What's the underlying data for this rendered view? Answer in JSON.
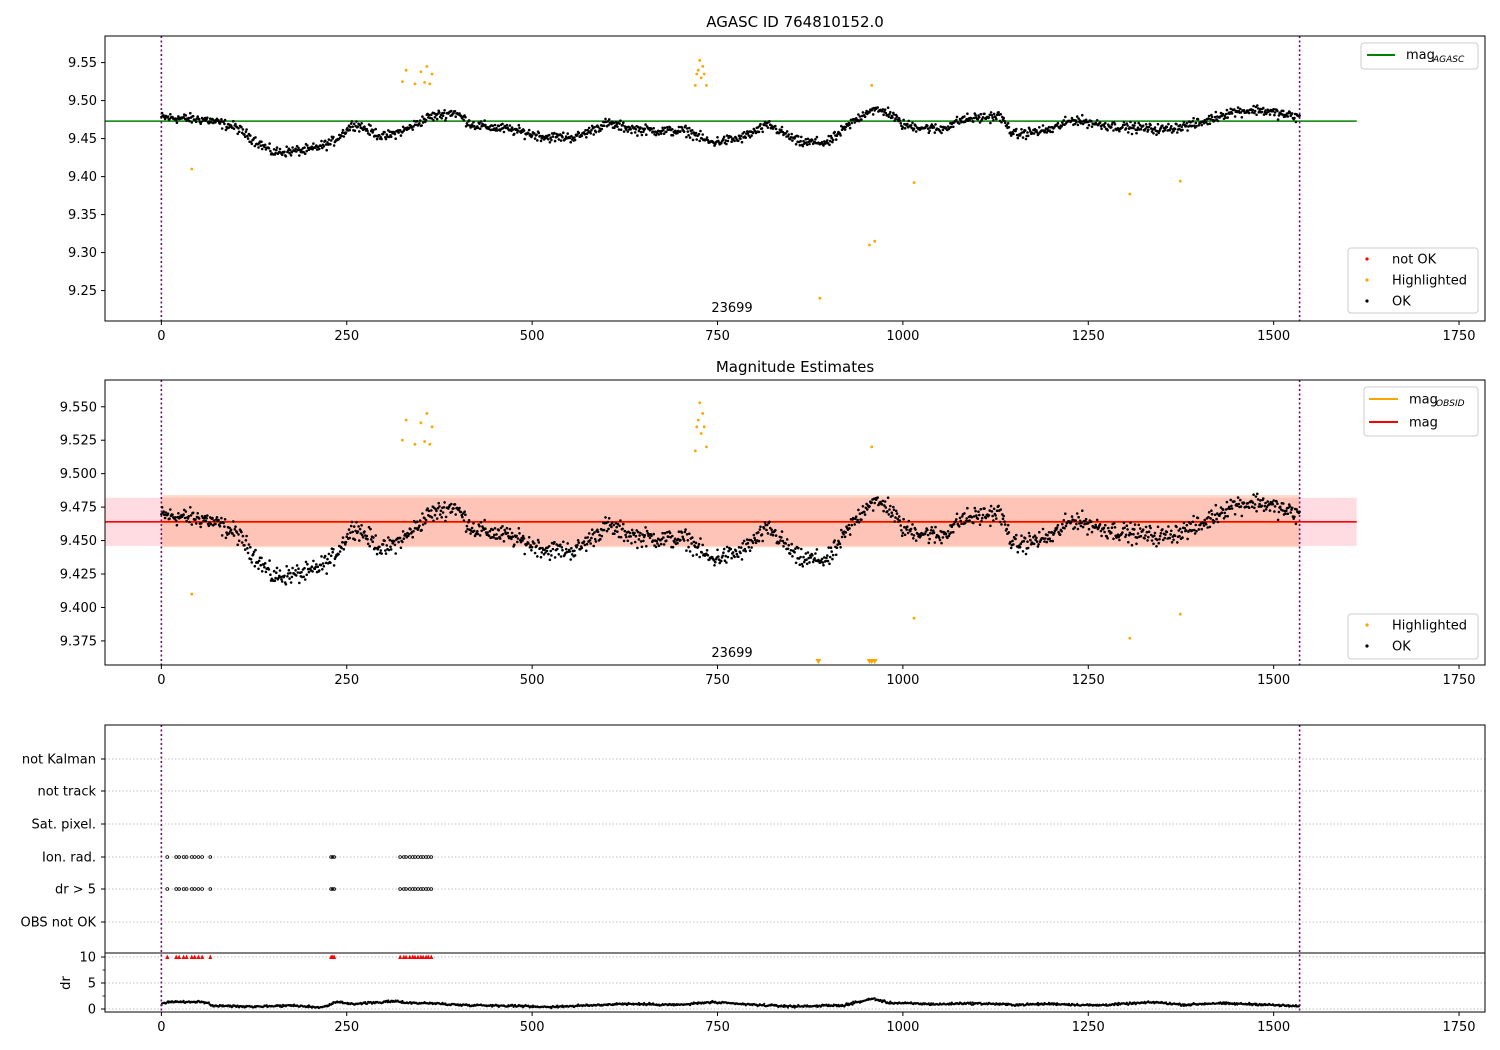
{
  "chart_data": [
    {
      "type": "scatter",
      "title": "AGASC ID 764810152.0",
      "obsid_label": "23699",
      "xlim": [
        -76,
        1785
      ],
      "ylim": [
        9.21,
        9.585
      ],
      "xticks": [
        0,
        250,
        500,
        750,
        1000,
        1250,
        1500,
        1750
      ],
      "xtick_labels": [
        "0",
        "250",
        "500",
        "750",
        "1000",
        "1250",
        "1500",
        "1750"
      ],
      "yticks": [
        9.25,
        9.3,
        9.35,
        9.4,
        9.45,
        9.5,
        9.55
      ],
      "ytick_labels": [
        "9.25",
        "9.30",
        "9.35",
        "9.40",
        "9.45",
        "9.50",
        "9.55"
      ],
      "vlines": [
        0,
        1535
      ],
      "hline": {
        "y": 9.473,
        "x_range": [
          -76,
          1612
        ],
        "color": "#008000"
      },
      "legend_top": [
        {
          "label": "mag",
          "sub": "AGASC",
          "color": "#008000"
        }
      ],
      "legend_bottom": [
        {
          "label": "not OK",
          "color": "#ff0000"
        },
        {
          "label": "Highlighted",
          "color": "#ffa500"
        },
        {
          "label": "OK",
          "color": "#000000"
        }
      ],
      "series": [
        {
          "name": "Highlighted",
          "color": "#ffa500",
          "points": [
            [
              41,
              9.41
            ],
            [
              325,
              9.525
            ],
            [
              330,
              9.54
            ],
            [
              342,
              9.522
            ],
            [
              350,
              9.538
            ],
            [
              355,
              9.524
            ],
            [
              358,
              9.545
            ],
            [
              362,
              9.522
            ],
            [
              365,
              9.535
            ],
            [
              720,
              9.52
            ],
            [
              722,
              9.535
            ],
            [
              724,
              9.54
            ],
            [
              726,
              9.553
            ],
            [
              728,
              9.53
            ],
            [
              730,
              9.545
            ],
            [
              732,
              9.535
            ],
            [
              735,
              9.52
            ],
            [
              888,
              9.24
            ],
            [
              955,
              9.31
            ],
            [
              958,
              9.52
            ],
            [
              962,
              9.315
            ],
            [
              1015,
              9.392
            ],
            [
              1306,
              9.377
            ],
            [
              1374,
              9.394
            ]
          ]
        },
        {
          "name": "OK",
          "color": "#000000",
          "trend": [
            [
              0,
              9.478
            ],
            [
              60,
              9.475
            ],
            [
              100,
              9.465
            ],
            [
              150,
              9.432
            ],
            [
              200,
              9.435
            ],
            [
              230,
              9.445
            ],
            [
              260,
              9.47
            ],
            [
              300,
              9.452
            ],
            [
              330,
              9.462
            ],
            [
              360,
              9.478
            ],
            [
              395,
              9.485
            ],
            [
              420,
              9.468
            ],
            [
              470,
              9.462
            ],
            [
              520,
              9.452
            ],
            [
              560,
              9.452
            ],
            [
              600,
              9.47
            ],
            [
              640,
              9.462
            ],
            [
              680,
              9.46
            ],
            [
              710,
              9.46
            ],
            [
              740,
              9.445
            ],
            [
              780,
              9.45
            ],
            [
              820,
              9.468
            ],
            [
              860,
              9.445
            ],
            [
              900,
              9.445
            ],
            [
              930,
              9.47
            ],
            [
              955,
              9.488
            ],
            [
              980,
              9.485
            ],
            [
              1000,
              9.468
            ],
            [
              1050,
              9.462
            ],
            [
              1080,
              9.475
            ],
            [
              1130,
              9.48
            ],
            [
              1150,
              9.455
            ],
            [
              1200,
              9.462
            ],
            [
              1230,
              9.475
            ],
            [
              1270,
              9.468
            ],
            [
              1300,
              9.465
            ],
            [
              1350,
              9.462
            ],
            [
              1400,
              9.47
            ],
            [
              1440,
              9.485
            ],
            [
              1480,
              9.488
            ],
            [
              1535,
              9.478
            ]
          ]
        }
      ]
    },
    {
      "type": "scatter",
      "title": "Magnitude Estimates",
      "obsid_label": "23699",
      "xlim": [
        -76,
        1785
      ],
      "ylim": [
        9.357,
        9.57
      ],
      "xticks": [
        0,
        250,
        500,
        750,
        1000,
        1250,
        1500,
        1750
      ],
      "xtick_labels": [
        "0",
        "250",
        "500",
        "750",
        "1000",
        "1250",
        "1500",
        "1750"
      ],
      "yticks": [
        9.375,
        9.4,
        9.425,
        9.45,
        9.475,
        9.5,
        9.525,
        9.55
      ],
      "ytick_labels": [
        "9.375",
        "9.400",
        "9.425",
        "9.450",
        "9.475",
        "9.500",
        "9.525",
        "9.550"
      ],
      "vlines": [
        0,
        1535
      ],
      "mag_line": {
        "y": 9.464,
        "color": "#ff0000"
      },
      "mag_band": {
        "y_range": [
          9.446,
          9.482
        ],
        "x_range": [
          -76,
          1612
        ],
        "color": "#ffc0cb"
      },
      "obsid_line": {
        "y": 9.464,
        "x_range": [
          0,
          1535
        ],
        "color": "#ffa500"
      },
      "obsid_band": {
        "y_range": [
          9.445,
          9.484
        ],
        "x_range": [
          0,
          1535
        ],
        "color": "#ffa07a"
      },
      "legend_top": [
        {
          "label": "mag",
          "sub": "OBSID",
          "color": "#ffa500"
        },
        {
          "label": "mag",
          "sub": "",
          "color": "#ff0000"
        }
      ],
      "legend_bottom": [
        {
          "label": "Highlighted",
          "color": "#ffa500"
        },
        {
          "label": "OK",
          "color": "#000000"
        }
      ],
      "series": [
        {
          "name": "Highlighted",
          "color": "#ffa500",
          "points": [
            [
              41,
              9.41
            ],
            [
              325,
              9.525
            ],
            [
              330,
              9.54
            ],
            [
              342,
              9.522
            ],
            [
              350,
              9.538
            ],
            [
              355,
              9.524
            ],
            [
              358,
              9.545
            ],
            [
              362,
              9.522
            ],
            [
              365,
              9.535
            ],
            [
              720,
              9.517
            ],
            [
              722,
              9.535
            ],
            [
              724,
              9.54
            ],
            [
              726,
              9.553
            ],
            [
              728,
              9.53
            ],
            [
              730,
              9.545
            ],
            [
              732,
              9.535
            ],
            [
              735,
              9.52
            ],
            [
              958,
              9.52
            ],
            [
              1015,
              9.392
            ],
            [
              1306,
              9.377
            ],
            [
              1374,
              9.395
            ]
          ]
        },
        {
          "name": "OK",
          "color": "#000000"
        }
      ],
      "clipped_markers": {
        "color": "#ffa500",
        "x": [
          886,
          955,
          958,
          962
        ]
      }
    },
    {
      "type": "scatter",
      "xlim": [
        -76,
        1785
      ],
      "xticks": [
        0,
        250,
        500,
        750,
        1000,
        1250,
        1500,
        1750
      ],
      "xtick_labels": [
        "0",
        "250",
        "500",
        "750",
        "1000",
        "1250",
        "1500",
        "1750"
      ],
      "vlines": [
        0,
        1535
      ],
      "flag_rows": [
        "not Kalman",
        "not track",
        "Sat. pixel.",
        "Ion. rad.",
        "dr > 5",
        "OBS not OK"
      ],
      "flagged_x": [
        8,
        20,
        24,
        30,
        34,
        41,
        45,
        50,
        55,
        66,
        229,
        231,
        233,
        322,
        327,
        330,
        335,
        339,
        342,
        346,
        350,
        353,
        357,
        360,
        364
      ],
      "flagged_rows": [
        "Ion. rad.",
        "dr > 5"
      ],
      "dr": {
        "ylabel": "dr",
        "ylim": [
          -0.3,
          11
        ],
        "yticks": [
          0,
          5,
          10
        ],
        "ytick_labels": [
          "0",
          "5",
          "10"
        ],
        "not_ok_color": "#ff0000",
        "trend": [
          [
            0,
            0.9
          ],
          [
            10,
            1.4
          ],
          [
            60,
            1.3
          ],
          [
            70,
            0.6
          ],
          [
            130,
            0.5
          ],
          [
            180,
            0.7
          ],
          [
            210,
            0.3
          ],
          [
            225,
            0.6
          ],
          [
            235,
            1.3
          ],
          [
            260,
            1.0
          ],
          [
            320,
            1.5
          ],
          [
            330,
            1.2
          ],
          [
            365,
            1.1
          ],
          [
            400,
            0.8
          ],
          [
            480,
            0.6
          ],
          [
            520,
            0.4
          ],
          [
            580,
            0.7
          ],
          [
            620,
            1.0
          ],
          [
            700,
            0.8
          ],
          [
            740,
            1.3
          ],
          [
            800,
            0.8
          ],
          [
            850,
            0.5
          ],
          [
            920,
            0.7
          ],
          [
            960,
            2.0
          ],
          [
            980,
            1.2
          ],
          [
            1050,
            0.9
          ],
          [
            1080,
            1.1
          ],
          [
            1120,
            1.0
          ],
          [
            1150,
            0.8
          ],
          [
            1200,
            1.0
          ],
          [
            1260,
            0.7
          ],
          [
            1300,
            1.0
          ],
          [
            1340,
            1.3
          ],
          [
            1380,
            0.8
          ],
          [
            1420,
            1.1
          ],
          [
            1480,
            0.9
          ],
          [
            1535,
            0.5
          ]
        ]
      }
    }
  ]
}
